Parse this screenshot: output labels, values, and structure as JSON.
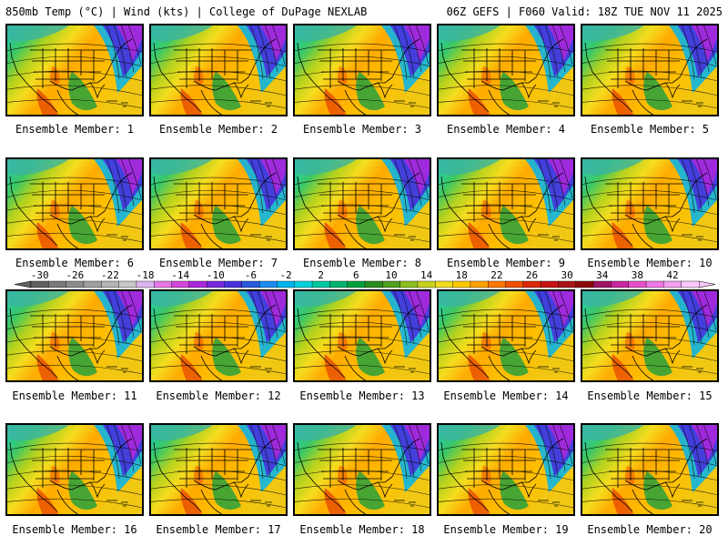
{
  "header": {
    "title_left": "850mb Temp (°C) | Wind (kts) | College of DuPage NEXLAB",
    "title_right": "06Z GEFS | F060 Valid: 18Z TUE NOV 11 2025"
  },
  "panels": [
    {
      "label": "Ensemble Member: 1"
    },
    {
      "label": "Ensemble Member: 2"
    },
    {
      "label": "Ensemble Member: 3"
    },
    {
      "label": "Ensemble Member: 4"
    },
    {
      "label": "Ensemble Member: 5"
    },
    {
      "label": "Ensemble Member: 6"
    },
    {
      "label": "Ensemble Member: 7"
    },
    {
      "label": "Ensemble Member: 8"
    },
    {
      "label": "Ensemble Member: 9"
    },
    {
      "label": "Ensemble Member: 10"
    },
    {
      "label": "Ensemble Member: 11"
    },
    {
      "label": "Ensemble Member: 12"
    },
    {
      "label": "Ensemble Member: 13"
    },
    {
      "label": "Ensemble Member: 14"
    },
    {
      "label": "Ensemble Member: 15"
    },
    {
      "label": "Ensemble Member: 16"
    },
    {
      "label": "Ensemble Member: 17"
    },
    {
      "label": "Ensemble Member: 18"
    },
    {
      "label": "Ensemble Member: 19"
    },
    {
      "label": "Ensemble Member: 20"
    }
  ],
  "colorbar": {
    "tick_labels": [
      "-30",
      "-26",
      "-22",
      "-18",
      "-14",
      "-10",
      "-6",
      "-2",
      "2",
      "6",
      "10",
      "14",
      "18",
      "22",
      "26",
      "30",
      "34",
      "38",
      "42"
    ],
    "colors": [
      "#606060",
      "#7a7a7a",
      "#8c8c8c",
      "#a0a0a0",
      "#b4b4b4",
      "#c8c8c8",
      "#dcb4f0",
      "#e678e6",
      "#d246dc",
      "#aa28dc",
      "#7828dc",
      "#4632dc",
      "#285adc",
      "#1e8cf0",
      "#00b4f0",
      "#00d2dc",
      "#00c8a0",
      "#00b46e",
      "#00a03c",
      "#288c1e",
      "#50a01e",
      "#8cbe1e",
      "#c8d21e",
      "#f0dc1e",
      "#ffc800",
      "#ffa000",
      "#ff7800",
      "#f05000",
      "#dc2800",
      "#c81414",
      "#aa1414",
      "#8c0a0a",
      "#a01464",
      "#c828a0",
      "#e650c8",
      "#f078e6",
      "#f5a0f0",
      "#fac8fa"
    ]
  }
}
